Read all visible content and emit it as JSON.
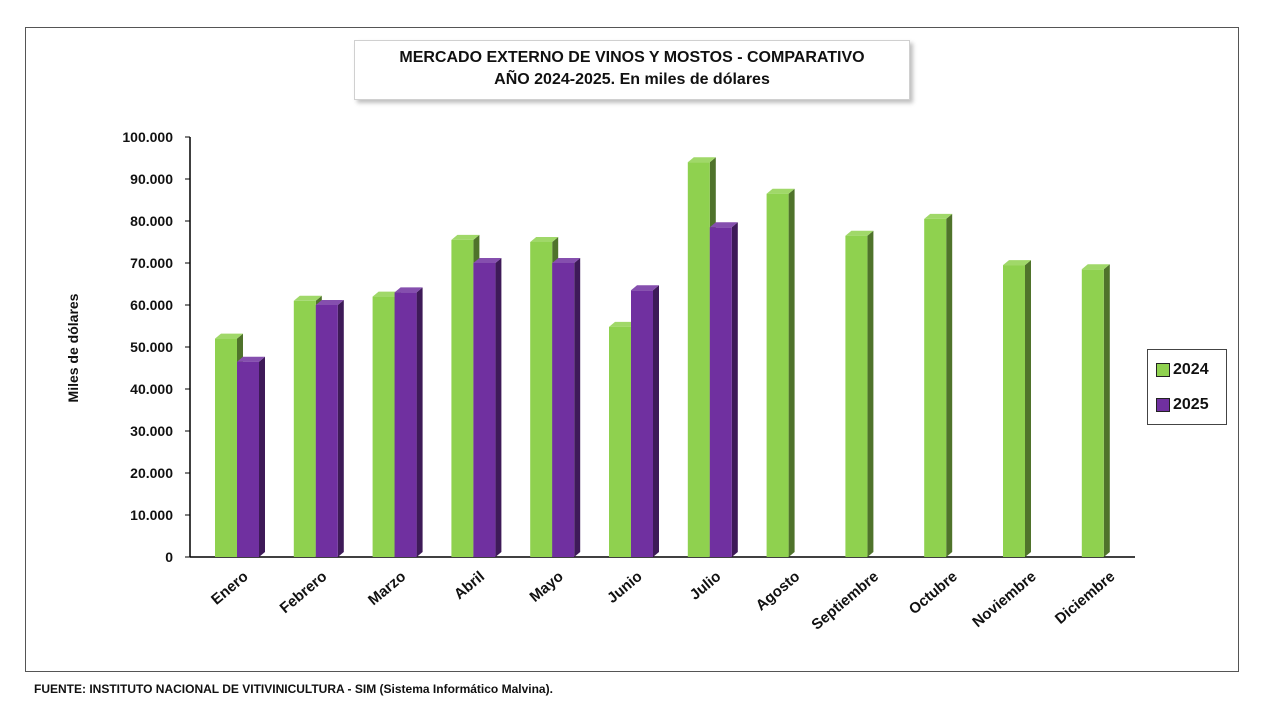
{
  "chart_data": {
    "type": "bar",
    "title_line1": "MERCADO EXTERNO DE VINOS Y MOSTOS - COMPARATIVO",
    "title_line2": "AÑO 2024-2025. En miles de dólares",
    "ylabel": "Miles de dólares",
    "xlabel": "",
    "ylim": [
      0,
      100000
    ],
    "y_ticks": [
      "0",
      "10.000",
      "20.000",
      "30.000",
      "40.000",
      "50.000",
      "60.000",
      "70.000",
      "80.000",
      "90.000",
      "100.000"
    ],
    "categories": [
      "Enero",
      "Febrero",
      "Marzo",
      "Abril",
      "Mayo",
      "Junio",
      "Julio",
      "Agosto",
      "Septiembre",
      "Octubre",
      "Noviembre",
      "Diciembre"
    ],
    "series": [
      {
        "name": "2024",
        "color": "#8fd14f",
        "values": [
          52000,
          61000,
          62000,
          75500,
          75000,
          54800,
          94000,
          86500,
          76500,
          80500,
          69500,
          68500
        ]
      },
      {
        "name": "2025",
        "color": "#7030a0",
        "values": [
          46500,
          60000,
          63000,
          70000,
          70000,
          63500,
          78500,
          null,
          null,
          null,
          null,
          null
        ]
      }
    ],
    "legend_position": "right",
    "grid": false
  },
  "source_note": "FUENTE: INSTITUTO NACIONAL DE VITIVINICULTURA - SIM (Sistema Informático Malvina)."
}
